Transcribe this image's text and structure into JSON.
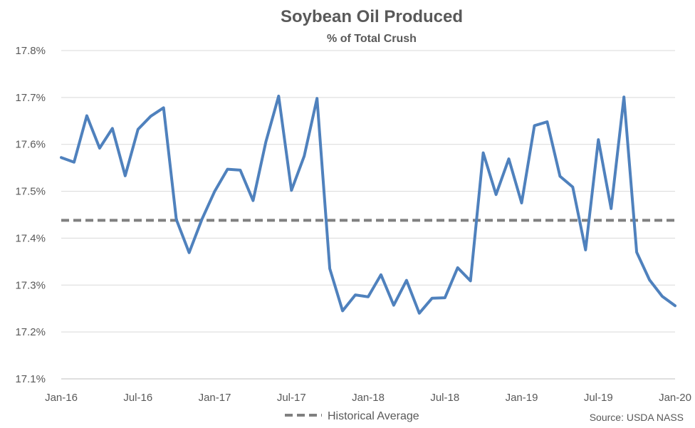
{
  "chart_data": {
    "type": "line",
    "title": "Soybean Oil Produced",
    "subtitle": "% of Total Crush",
    "xlabel": "",
    "ylabel": "",
    "ylim": [
      17.1,
      17.8
    ],
    "yticks": [
      "17.1%",
      "17.2%",
      "17.3%",
      "17.4%",
      "17.5%",
      "17.6%",
      "17.7%",
      "17.8%"
    ],
    "xticks": [
      "Jan-16",
      "Jul-16",
      "Jan-17",
      "Jul-17",
      "Jan-18",
      "Jul-18",
      "Jan-19",
      "Jul-19",
      "Jan-20"
    ],
    "grid": true,
    "series": [
      {
        "color": "#4F81BD",
        "values": [
          17.572,
          17.562,
          17.661,
          17.592,
          17.634,
          17.533,
          17.632,
          17.66,
          17.678,
          17.44,
          17.369,
          17.44,
          17.5,
          17.547,
          17.545,
          17.48,
          17.605,
          17.703,
          17.502,
          17.575,
          17.698,
          17.335,
          17.245,
          17.279,
          17.275,
          17.322,
          17.257,
          17.31,
          17.24,
          17.272,
          17.273,
          17.337,
          17.309,
          17.582,
          17.493,
          17.569,
          17.475,
          17.64,
          17.648,
          17.532,
          17.509,
          17.375,
          17.61,
          17.463,
          17.701,
          17.37,
          17.311,
          17.276,
          17.256
        ]
      },
      {
        "name": "Historical Average",
        "color": "#808080",
        "style": "dashed",
        "values": [
          17.438,
          17.438
        ]
      }
    ],
    "legend": "bottom",
    "source": "Source: USDA NASS"
  }
}
